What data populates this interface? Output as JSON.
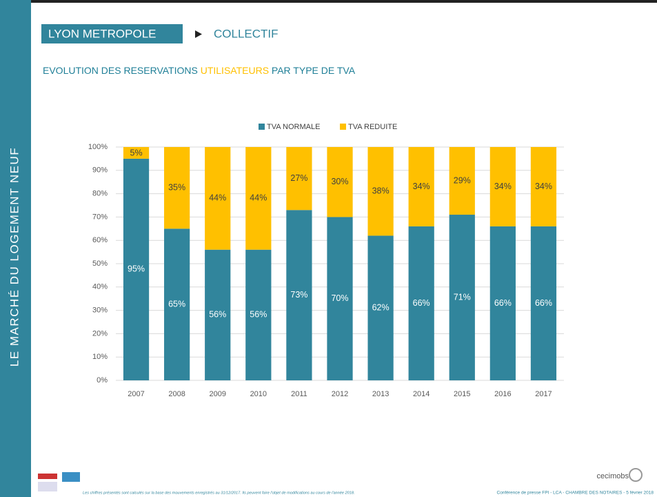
{
  "slide": {
    "sidebar": "LE MARCHÉ DU LOGEMENT NEUF",
    "header": "LYON METROPOLE",
    "section": "COLLECTIF",
    "subtitle": [
      "EVOLUTION DES RESERVATIONS ",
      "UTILISATEURS",
      " PAR TYPE DE TVA"
    ],
    "footnote": "Les chiffres présentés sont calculés sur la base des mouvements enregistrés au 31/12/2017. Ils peuvent faire l'objet de modifications au cours de l'année 2018.",
    "credit": "Conférence de presse FPI - LCA - CHAMBRE DES NOTAIRES - 5 février 2018",
    "logo": "cecimobs"
  },
  "chart_data": {
    "type": "stacked_bar",
    "categories": [
      "2007",
      "2008",
      "2009",
      "2010",
      "2011",
      "2012",
      "2013",
      "2014",
      "2015",
      "2016",
      "2017"
    ],
    "series": [
      {
        "name": "TVA NORMALE",
        "color": "#31859c",
        "values": [
          95,
          65,
          56,
          56,
          73,
          70,
          62,
          66,
          71,
          66,
          66
        ],
        "value_labels": [
          "95%",
          "65%",
          "56%",
          "56%",
          "73%",
          "70%",
          "62%",
          "66%",
          "71%",
          "66%",
          "66%"
        ]
      },
      {
        "name": "TVA REDUITE",
        "color": "#ffc000",
        "values": [
          5,
          35,
          44,
          44,
          27,
          30,
          38,
          34,
          29,
          34,
          34
        ],
        "value_labels": [
          "5%",
          "35%",
          "44%",
          "44%",
          "27%",
          "30%",
          "38%",
          "34%",
          "29%",
          "34%",
          "34%"
        ]
      }
    ],
    "ylim": [
      0,
      100
    ],
    "yticks": [
      {
        "value": 0,
        "label": "0%"
      },
      {
        "value": 10,
        "label": "10%"
      },
      {
        "value": 20,
        "label": "20%"
      },
      {
        "value": 30,
        "label": "30%"
      },
      {
        "value": 40,
        "label": "40%"
      },
      {
        "value": 50,
        "label": "50%"
      },
      {
        "value": 60,
        "label": "60%"
      },
      {
        "value": 70,
        "label": "70%"
      },
      {
        "value": 80,
        "label": "80%"
      },
      {
        "value": 90,
        "label": "90%"
      },
      {
        "value": 100,
        "label": "100%"
      }
    ],
    "grid": true,
    "legend": "top"
  }
}
